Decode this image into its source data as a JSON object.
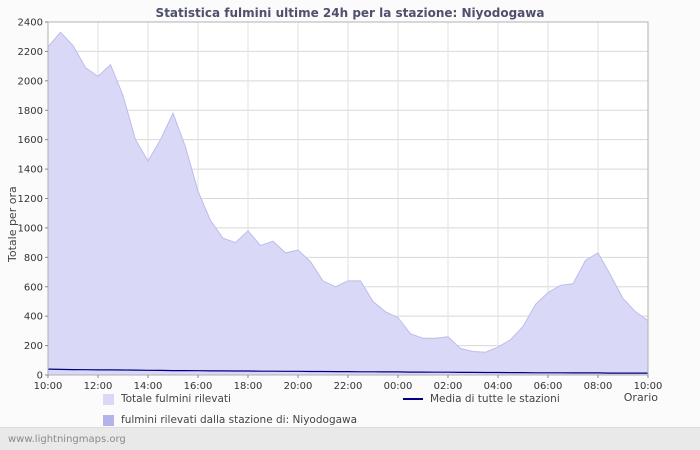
{
  "title": "Statistica fulmini ultime 24h per la stazione: Niyodogawa",
  "watermark": "www.lightningmaps.org",
  "chart_data": {
    "type": "area",
    "title": "Statistica fulmini ultime 24h per la stazione: Niyodogawa",
    "xlabel": "Orario",
    "ylabel": "Totale per ora",
    "ylim": [
      0,
      2400
    ],
    "ytick_step": 200,
    "x_step_hours": 0.5,
    "x_range_hours": 24,
    "grid": "on",
    "legend_position": "bottom",
    "xtick_labels": [
      "10:00",
      "12:00",
      "14:00",
      "16:00",
      "18:00",
      "20:00",
      "22:00",
      "00:00",
      "02:00",
      "04:00",
      "06:00",
      "08:00",
      "10:00"
    ],
    "series": [
      {
        "name": "Totale fulmini rilevati",
        "type": "area",
        "color": "#d9d9f7",
        "edge": "#bcbcec",
        "values": [
          2230,
          2330,
          2240,
          2090,
          2030,
          2110,
          1900,
          1600,
          1455,
          1600,
          1780,
          1550,
          1250,
          1050,
          930,
          900,
          980,
          880,
          910,
          830,
          850,
          770,
          640,
          600,
          640,
          640,
          500,
          430,
          390,
          280,
          250,
          250,
          260,
          180,
          160,
          155,
          190,
          240,
          330,
          480,
          560,
          610,
          620,
          780,
          830,
          680,
          520,
          430,
          370
        ]
      },
      {
        "name": "fulmini rilevati dalla stazione di: Niyodogawa",
        "type": "area",
        "color": "#b3b3ea",
        "edge": "#9f9fe0",
        "values": [
          0,
          0,
          0,
          0,
          0,
          0,
          0,
          0,
          0,
          0,
          0,
          0,
          0,
          0,
          0,
          0,
          0,
          0,
          0,
          0,
          0,
          0,
          0,
          0,
          0,
          0,
          0,
          0,
          0,
          0,
          0,
          0,
          0,
          0,
          0,
          0,
          0,
          0,
          0,
          0,
          0,
          0,
          0,
          0,
          0,
          0,
          0,
          0,
          0
        ]
      },
      {
        "name": "Media di tutte le stazioni",
        "type": "line",
        "color": "#000080",
        "values": [
          40,
          38,
          37,
          36,
          35,
          35,
          34,
          33,
          32,
          31,
          30,
          30,
          29,
          28,
          28,
          27,
          27,
          26,
          26,
          25,
          25,
          24,
          24,
          23,
          23,
          22,
          22,
          21,
          21,
          20,
          20,
          19,
          19,
          18,
          18,
          17,
          17,
          16,
          16,
          15,
          15,
          15,
          14,
          14,
          14,
          13,
          13,
          13,
          13
        ]
      }
    ],
    "legend": [
      {
        "label": "Totale fulmini rilevati",
        "swatch": "#d9d9f7",
        "kind": "box"
      },
      {
        "label": "Media di tutte le stazioni",
        "swatch": "#000080",
        "kind": "line"
      },
      {
        "label": "fulmini rilevati dalla stazione di: Niyodogawa",
        "swatch": "#b3b3ea",
        "kind": "box"
      }
    ]
  }
}
